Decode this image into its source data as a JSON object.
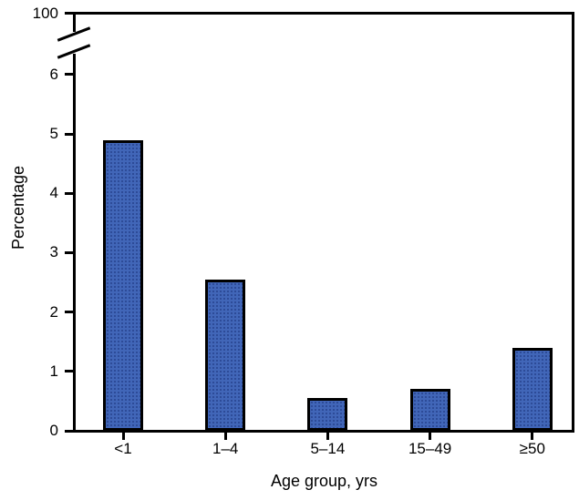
{
  "figure": {
    "background_color": "#ffffff",
    "bar_fill_color": "#4166b8",
    "bar_border_color": "#000000",
    "axis_color": "#000000",
    "text_color": "#000000"
  },
  "chart_data": {
    "type": "bar",
    "categories": [
      "<1",
      "1–4",
      "5–14",
      "15–49",
      "≥50"
    ],
    "values": [
      4.9,
      2.55,
      0.55,
      0.7,
      1.4
    ],
    "title": "",
    "xlabel": "Age group, yrs",
    "ylabel": "Percentage",
    "ylim": [
      0,
      6
    ],
    "yticks": [
      0,
      1,
      2,
      3,
      4,
      5,
      6
    ],
    "y_axis_break": {
      "top_label": "100"
    },
    "grid": false,
    "legend": null,
    "layout": "framed plot area, broken y-axis between 6 and 100"
  }
}
